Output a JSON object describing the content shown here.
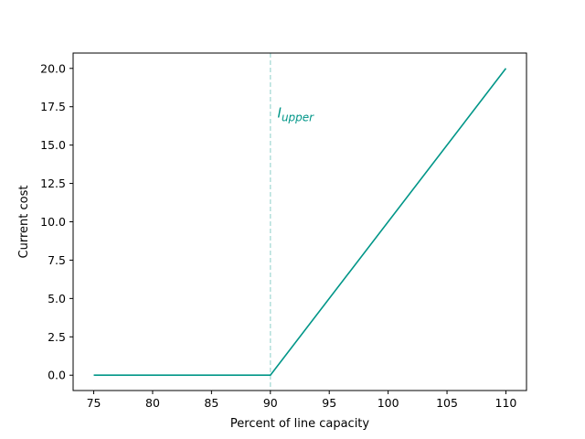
{
  "chart_data": {
    "type": "line",
    "title": "",
    "xlabel": "Percent of line capacity",
    "ylabel": "Current cost",
    "xlim": [
      73.25,
      111.75
    ],
    "ylim": [
      -1.0,
      21.0
    ],
    "xticks": [
      75,
      80,
      85,
      90,
      95,
      100,
      105,
      110
    ],
    "xtick_labels": [
      "75",
      "80",
      "85",
      "90",
      "95",
      "100",
      "105",
      "110"
    ],
    "yticks": [
      0.0,
      2.5,
      5.0,
      7.5,
      10.0,
      12.5,
      15.0,
      17.5,
      20.0
    ],
    "ytick_labels": [
      "0.0",
      "2.5",
      "5.0",
      "7.5",
      "10.0",
      "12.5",
      "15.0",
      "17.5",
      "20.0"
    ],
    "grid": false,
    "series": [
      {
        "x": [
          75,
          90,
          110
        ],
        "y": [
          0,
          0,
          20
        ],
        "color": "#009688"
      }
    ],
    "vline": {
      "x": 90,
      "color": "#b2dfdb",
      "style": "dashed"
    },
    "annotation": {
      "base": "I",
      "subscript": "upper",
      "x": 90.6,
      "y": 16.8,
      "color": "#009688"
    }
  }
}
